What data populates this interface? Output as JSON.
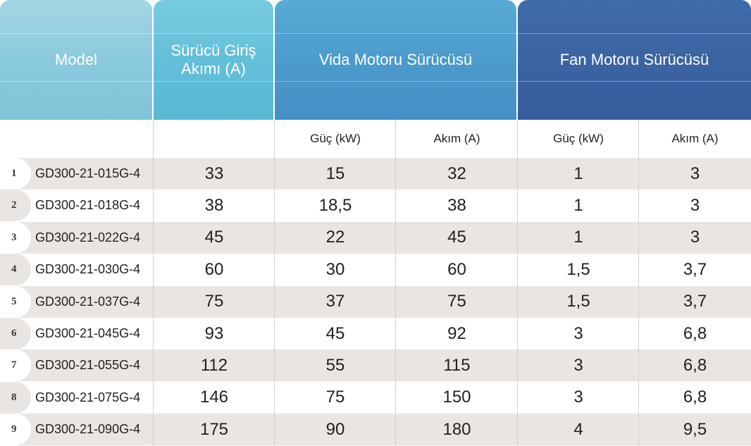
{
  "headers": {
    "model": "Model",
    "input_line1": "Sürücü Giriş",
    "input_line2": "Akımı (A)",
    "vida": "Vida Motoru Sürücüsü",
    "fan": "Fan Motoru Sürücüsü"
  },
  "subheaders": {
    "vida_power": "Güç (kW)",
    "vida_current": "Akım (A)",
    "fan_power": "Güç (kW)",
    "fan_current": "Akım (A)"
  },
  "colors": {
    "model_header": "#8bcadd",
    "input_header": "#64bfd9",
    "vida_header": "#4b9bcc",
    "fan_header": "#3b64a2",
    "stripe": "#e9e5e2"
  },
  "rows": [
    {
      "idx": "1",
      "model": "GD300-21-015G-4",
      "input": "33",
      "vida_power": "15",
      "vida_current": "32",
      "fan_power": "1",
      "fan_current": "3"
    },
    {
      "idx": "2",
      "model": "GD300-21-018G-4",
      "input": "38",
      "vida_power": "18,5",
      "vida_current": "38",
      "fan_power": "1",
      "fan_current": "3"
    },
    {
      "idx": "3",
      "model": "GD300-21-022G-4",
      "input": "45",
      "vida_power": "22",
      "vida_current": "45",
      "fan_power": "1",
      "fan_current": "3"
    },
    {
      "idx": "4",
      "model": "GD300-21-030G-4",
      "input": "60",
      "vida_power": "30",
      "vida_current": "60",
      "fan_power": "1,5",
      "fan_current": "3,7"
    },
    {
      "idx": "5",
      "model": "GD300-21-037G-4",
      "input": "75",
      "vida_power": "37",
      "vida_current": "75",
      "fan_power": "1,5",
      "fan_current": "3,7"
    },
    {
      "idx": "6",
      "model": "GD300-21-045G-4",
      "input": "93",
      "vida_power": "45",
      "vida_current": "92",
      "fan_power": "3",
      "fan_current": "6,8"
    },
    {
      "idx": "7",
      "model": "GD300-21-055G-4",
      "input": "112",
      "vida_power": "55",
      "vida_current": "115",
      "fan_power": "3",
      "fan_current": "6,8"
    },
    {
      "idx": "8",
      "model": "GD300-21-075G-4",
      "input": "146",
      "vida_power": "75",
      "vida_current": "150",
      "fan_power": "3",
      "fan_current": "6,8"
    },
    {
      "idx": "9",
      "model": "GD300-21-090G-4",
      "input": "175",
      "vida_power": "90",
      "vida_current": "180",
      "fan_power": "4",
      "fan_current": "9,5"
    }
  ]
}
